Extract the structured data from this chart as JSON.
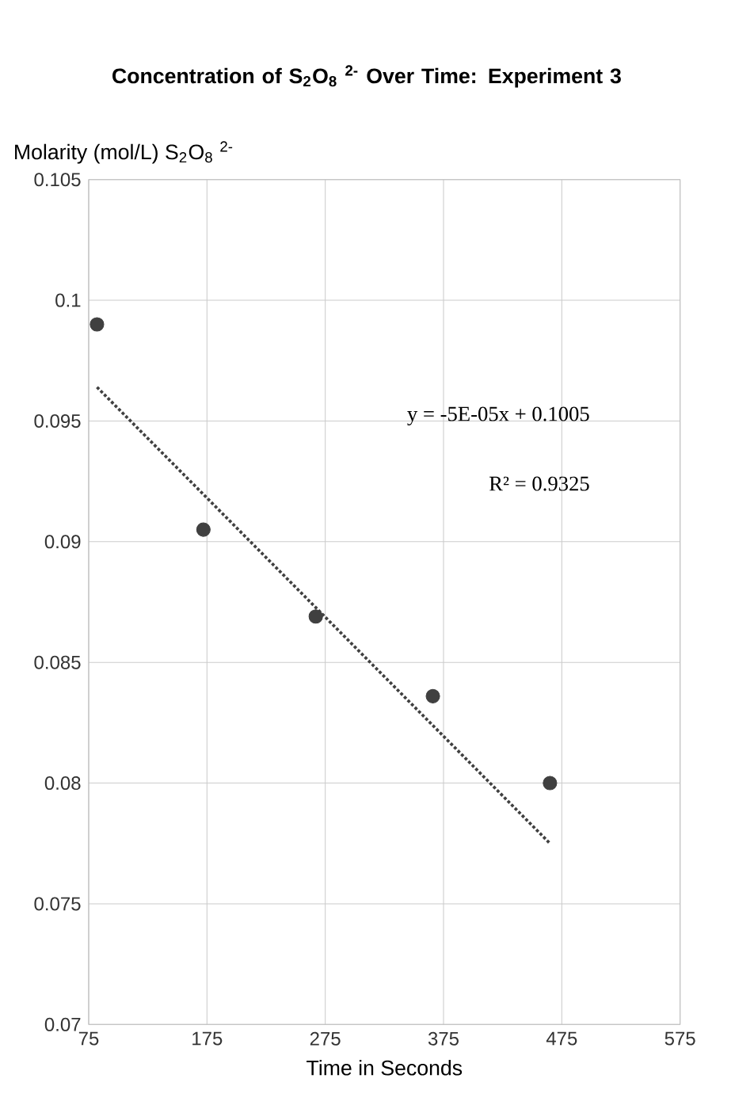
{
  "chart_data": {
    "type": "scatter",
    "title": "Concentration of S$_{2}$O$_{8}$ $^{2-}$ Over Time: Experiment 3",
    "xlabel": "Time in Seconds",
    "ylabel": "Molarity (mol/L) S$_{2}$O$_{8}$ $^{2-}$",
    "xlim": [
      75,
      575
    ],
    "xticks": [
      75,
      175,
      275,
      375,
      475,
      575
    ],
    "ylim": [
      0.07,
      0.105
    ],
    "yticks": [
      0.07,
      0.075,
      0.08,
      0.085,
      0.09,
      0.095,
      0.1,
      0.105
    ],
    "grid": true,
    "series": [
      {
        "type": "scatter",
        "color": "#404040",
        "marker": "circle",
        "x": [
          82,
          172,
          267,
          366,
          465
        ],
        "values": [
          0.099,
          0.0905,
          0.0869,
          0.0836,
          0.08
        ]
      },
      {
        "type": "line",
        "color": "#404040",
        "marker": "none",
        "line_style": "dotted",
        "x": [
          82,
          465
        ],
        "values": [
          0.0964,
          0.0775
        ]
      }
    ],
    "annotations": [
      "y = -5E-05x + 0.1005",
      "R² = 0.9325"
    ]
  }
}
